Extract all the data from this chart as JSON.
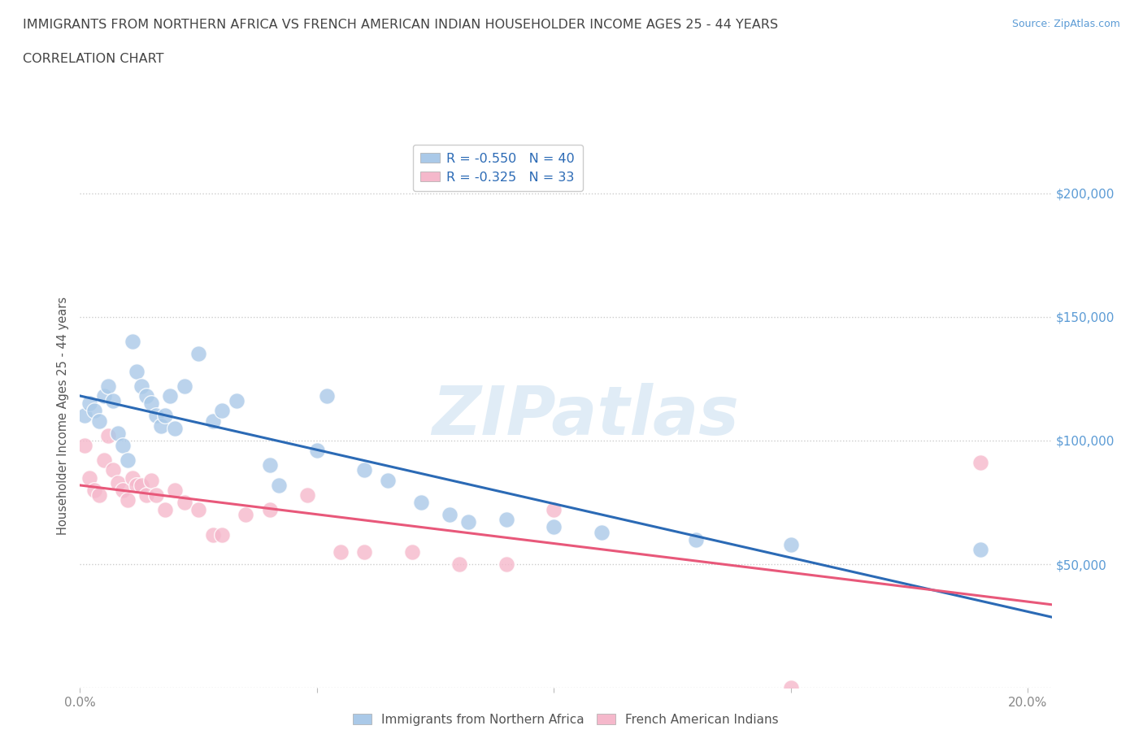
{
  "title": "IMMIGRANTS FROM NORTHERN AFRICA VS FRENCH AMERICAN INDIAN HOUSEHOLDER INCOME AGES 25 - 44 YEARS",
  "subtitle": "CORRELATION CHART",
  "source": "Source: ZipAtlas.com",
  "ylabel": "Householder Income Ages 25 - 44 years",
  "xlim": [
    0.0,
    0.205
  ],
  "ylim": [
    0,
    220000
  ],
  "yticks": [
    0,
    50000,
    100000,
    150000,
    200000
  ],
  "ytick_labels": [
    "",
    "$50,000",
    "$100,000",
    "$150,000",
    "$200,000"
  ],
  "xticks": [
    0.0,
    0.05,
    0.1,
    0.15,
    0.2
  ],
  "xtick_labels": [
    "0.0%",
    "",
    "",
    "",
    "20.0%"
  ],
  "watermark_text": "ZIPatlas",
  "blue_R": -0.55,
  "blue_N": 40,
  "pink_R": -0.325,
  "pink_N": 33,
  "blue_color": "#aac9e8",
  "pink_color": "#f5b8cb",
  "blue_line_color": "#2b6ab5",
  "pink_line_color": "#e8587a",
  "background_color": "#ffffff",
  "grid_color": "#cccccc",
  "title_color": "#444444",
  "ylabel_color": "#555555",
  "tick_color": "#888888",
  "right_tick_color": "#5b9bd5",
  "blue_x": [
    0.001,
    0.002,
    0.003,
    0.004,
    0.005,
    0.006,
    0.007,
    0.008,
    0.009,
    0.01,
    0.011,
    0.012,
    0.013,
    0.014,
    0.015,
    0.016,
    0.017,
    0.018,
    0.019,
    0.02,
    0.022,
    0.025,
    0.028,
    0.03,
    0.033,
    0.04,
    0.042,
    0.05,
    0.052,
    0.06,
    0.065,
    0.072,
    0.078,
    0.082,
    0.09,
    0.1,
    0.11,
    0.13,
    0.15,
    0.19
  ],
  "blue_y": [
    110000,
    115000,
    112000,
    108000,
    118000,
    122000,
    116000,
    103000,
    98000,
    92000,
    140000,
    128000,
    122000,
    118000,
    115000,
    110000,
    106000,
    110000,
    118000,
    105000,
    122000,
    135000,
    108000,
    112000,
    116000,
    90000,
    82000,
    96000,
    118000,
    88000,
    84000,
    75000,
    70000,
    67000,
    68000,
    65000,
    63000,
    60000,
    58000,
    56000
  ],
  "pink_x": [
    0.001,
    0.002,
    0.003,
    0.004,
    0.005,
    0.006,
    0.007,
    0.008,
    0.009,
    0.01,
    0.011,
    0.012,
    0.013,
    0.014,
    0.015,
    0.016,
    0.018,
    0.02,
    0.022,
    0.025,
    0.028,
    0.03,
    0.035,
    0.04,
    0.048,
    0.055,
    0.06,
    0.07,
    0.08,
    0.09,
    0.1,
    0.15,
    0.19
  ],
  "pink_y": [
    98000,
    85000,
    80000,
    78000,
    92000,
    102000,
    88000,
    83000,
    80000,
    76000,
    85000,
    82000,
    82000,
    78000,
    84000,
    78000,
    72000,
    80000,
    75000,
    72000,
    62000,
    62000,
    70000,
    72000,
    78000,
    55000,
    55000,
    55000,
    50000,
    50000,
    72000,
    0,
    91000
  ]
}
